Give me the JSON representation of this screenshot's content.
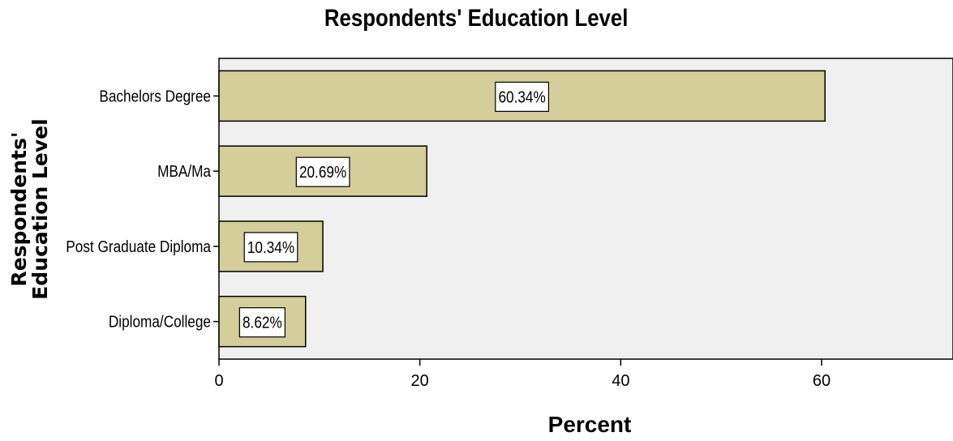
{
  "chart_data": {
    "type": "bar",
    "orientation": "horizontal",
    "title": "Respondents' Education Level",
    "xlabel": "Percent",
    "ylabel_line1": "Respondents'",
    "ylabel_line2": "Education Level",
    "categories": [
      "Bachelors Degree",
      "MBA/Ma",
      "Post Graduate Diploma",
      "Diploma/College"
    ],
    "values": [
      60.34,
      20.69,
      10.34,
      8.62
    ],
    "data_labels": [
      "60.34%",
      "20.69%",
      "10.34%",
      "8.62%"
    ],
    "xticks": [
      0,
      20,
      40,
      60
    ],
    "xlim": [
      0,
      73
    ],
    "grid": false,
    "colors": {
      "bar_fill": "#d3ce9a",
      "bar_stroke": "#000000",
      "plot_bg": "#f0f0f0",
      "label_box": "#ffffff"
    }
  }
}
